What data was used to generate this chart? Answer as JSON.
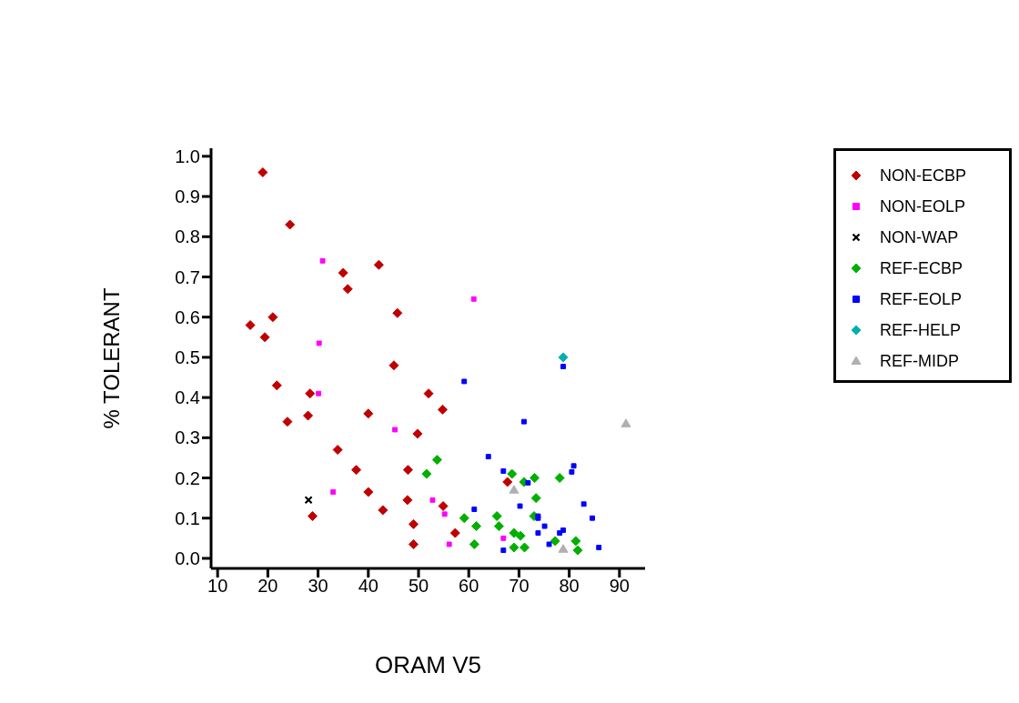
{
  "chart_data": {
    "type": "scatter",
    "xlabel": "ORAM V5",
    "ylabel": "% TOLERANT",
    "xlim": [
      8.7,
      95.1
    ],
    "ylim": [
      -0.025,
      1.02
    ],
    "xticks": [
      10,
      20,
      30,
      40,
      50,
      60,
      70,
      80,
      90
    ],
    "yticks": [
      {
        "value": 0,
        "label": "0.0"
      },
      {
        "value": 0.1,
        "label": "0.1"
      },
      {
        "value": 0.2,
        "label": "0.2"
      },
      {
        "value": 0.3,
        "label": "0.3"
      },
      {
        "value": 0.4,
        "label": "0.4"
      },
      {
        "value": 0.5,
        "label": "0.5"
      },
      {
        "value": 0.6,
        "label": "0.6"
      },
      {
        "value": 0.7,
        "label": "0.7"
      },
      {
        "value": 0.8,
        "label": "0.8"
      },
      {
        "value": 0.9,
        "label": "0.9"
      },
      {
        "value": 1,
        "label": "1.0"
      }
    ],
    "grid": false,
    "legend": "top right",
    "series": [
      {
        "name": "NON-ECBP",
        "color": "#c00000",
        "marker": "diamond",
        "x": [
          19.0,
          24.4,
          16.5,
          19.4,
          21.0,
          35.0,
          35.9,
          42.1,
          45.8,
          21.8,
          23.9,
          28.4,
          28.0,
          45.1,
          52.0,
          54.8,
          40.0,
          49.8,
          33.9,
          37.6,
          40.0,
          47.9,
          42.9,
          47.8,
          54.9,
          28.9,
          49.0,
          49.0,
          57.3,
          67.7
        ],
        "values": [
          0.96,
          0.83,
          0.58,
          0.55,
          0.6,
          0.71,
          0.67,
          0.73,
          0.61,
          0.43,
          0.34,
          0.41,
          0.355,
          0.48,
          0.41,
          0.37,
          0.36,
          0.31,
          0.27,
          0.22,
          0.165,
          0.22,
          0.12,
          0.145,
          0.13,
          0.105,
          0.085,
          0.035,
          0.063,
          0.19
        ]
      },
      {
        "name": "NON-EOLP",
        "color": "#ff00ff",
        "marker": "square",
        "x": [
          30.9,
          30.2,
          30.1,
          45.3,
          33.0,
          61.0,
          52.8,
          55.2,
          56.1,
          66.9
        ],
        "values": [
          0.74,
          0.535,
          0.41,
          0.32,
          0.165,
          0.645,
          0.145,
          0.11,
          0.035,
          0.05
        ]
      },
      {
        "name": "NON-WAP",
        "color": "#000000",
        "marker": "cross",
        "x": [
          28.1
        ],
        "values": [
          0.145
        ]
      },
      {
        "name": "REF-ECBP",
        "color": "#00b000",
        "marker": "diamond",
        "x": [
          53.7,
          51.6,
          59.1,
          61.5,
          61.1,
          65.6,
          66.0,
          68.6,
          71.0,
          73.1,
          73.4,
          73.0,
          69.0,
          70.3,
          69.0,
          71.1,
          77.2,
          78.1,
          81.3,
          81.7
        ],
        "values": [
          0.245,
          0.21,
          0.1,
          0.08,
          0.035,
          0.105,
          0.08,
          0.21,
          0.19,
          0.2,
          0.15,
          0.105,
          0.063,
          0.056,
          0.027,
          0.027,
          0.043,
          0.2,
          0.043,
          0.02
        ]
      },
      {
        "name": "REF-EOLP",
        "color": "#0000ff",
        "marker": "square",
        "x": [
          59.1,
          78.8,
          71.0,
          63.9,
          66.9,
          71.8,
          80.9,
          80.5,
          61.1,
          70.2,
          73.8,
          73.8,
          75.1,
          73.8,
          78.1,
          78.8,
          76.0,
          66.9,
          82.9,
          84.6,
          85.9
        ],
        "values": [
          0.44,
          0.477,
          0.34,
          0.253,
          0.217,
          0.188,
          0.23,
          0.215,
          0.122,
          0.13,
          0.105,
          0.1,
          0.08,
          0.063,
          0.063,
          0.07,
          0.035,
          0.02,
          0.135,
          0.1,
          0.027
        ]
      },
      {
        "name": "REF-HELP",
        "color": "#00b0b0",
        "marker": "diamond",
        "x": [
          78.8
        ],
        "values": [
          0.5
        ]
      },
      {
        "name": "REF-MIDP",
        "color": "#b0b0b0",
        "marker": "triangle",
        "x": [
          69.0,
          78.8,
          91.3
        ],
        "values": [
          0.17,
          0.023,
          0.335
        ]
      }
    ]
  }
}
